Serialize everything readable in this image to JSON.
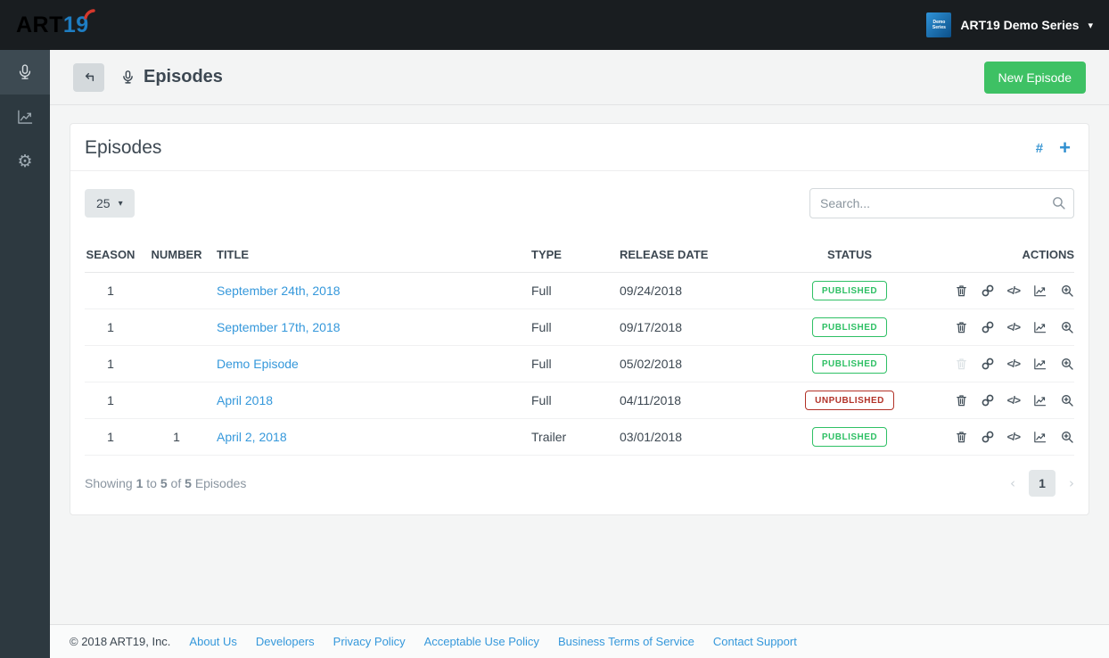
{
  "topbar": {
    "logo_art": "ART",
    "logo_19": "19",
    "series_switcher": {
      "name": "ART19 Demo Series",
      "thumb_text": "Demo Series"
    }
  },
  "sidebar": {
    "items": [
      {
        "id": "episodes",
        "icon": "microphone-icon",
        "active": true
      },
      {
        "id": "analytics",
        "icon": "chart-icon",
        "active": false
      },
      {
        "id": "settings",
        "icon": "gear-icon",
        "active": false
      }
    ]
  },
  "header": {
    "title": "Episodes",
    "new_episode_label": "New Episode"
  },
  "panel": {
    "title": "Episodes",
    "page_size": "25",
    "search_placeholder": "Search...",
    "table": {
      "columns": [
        "SEASON",
        "NUMBER",
        "TITLE",
        "TYPE",
        "RELEASE DATE",
        "STATUS",
        "ACTIONS"
      ],
      "rows": [
        {
          "season": "1",
          "number": "",
          "title": "September 24th, 2018",
          "type": "Full",
          "release_date": "09/24/2018",
          "status": "PUBLISHED",
          "status_variant": "success",
          "delete_disabled": false
        },
        {
          "season": "1",
          "number": "",
          "title": "September 17th, 2018",
          "type": "Full",
          "release_date": "09/17/2018",
          "status": "PUBLISHED",
          "status_variant": "success",
          "delete_disabled": false
        },
        {
          "season": "1",
          "number": "",
          "title": "Demo Episode",
          "type": "Full",
          "release_date": "05/02/2018",
          "status": "PUBLISHED",
          "status_variant": "success",
          "delete_disabled": true
        },
        {
          "season": "1",
          "number": "",
          "title": "April 2018",
          "type": "Full",
          "release_date": "04/11/2018",
          "status": "UNPUBLISHED",
          "status_variant": "danger",
          "delete_disabled": false
        },
        {
          "season": "1",
          "number": "1",
          "title": "April 2, 2018",
          "type": "Trailer",
          "release_date": "03/01/2018",
          "status": "PUBLISHED",
          "status_variant": "success",
          "delete_disabled": false
        }
      ]
    },
    "summary": {
      "prefix": "Showing",
      "from": "1",
      "mid1": "to",
      "to": "5",
      "mid2": "of",
      "total": "5",
      "suffix": "Episodes"
    },
    "pagination": {
      "current_page": "1"
    }
  },
  "glyphs": {
    "caret_down": "▾",
    "hash": "#",
    "plus": "+",
    "gear": "⚙",
    "prev": "‹",
    "next": "›",
    "code": "</>"
  },
  "footer": {
    "copyright": "© 2018 ART19, Inc.",
    "links": [
      "About Us",
      "Developers",
      "Privacy Policy",
      "Acceptable Use Policy",
      "Business Terms of Service",
      "Contact Support"
    ]
  },
  "colors": {
    "brand_blue": "#1e7dc2",
    "brand_red": "#d6382c",
    "link_blue": "#3598db",
    "success_green": "#2fc065",
    "danger_red": "#b23228",
    "button_green": "#3ec164",
    "topbar_bg": "#191d20",
    "sidebar_bg": "#2d3940"
  }
}
